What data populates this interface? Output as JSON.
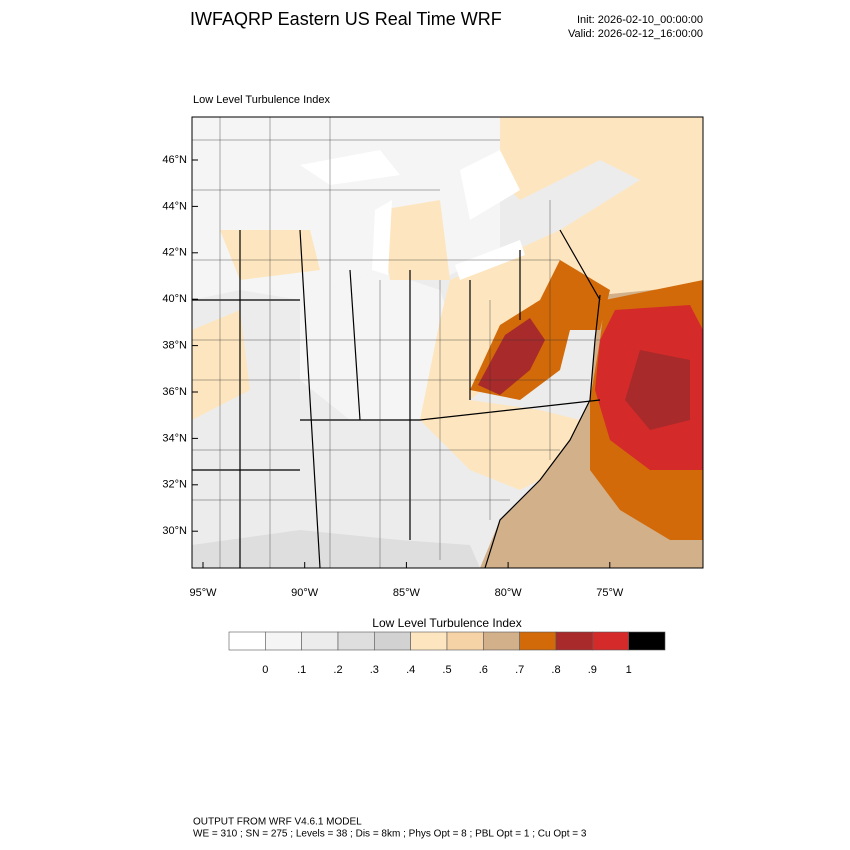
{
  "header": {
    "title": "IWFAQRP Eastern US Real Time WRF",
    "init": "Init: 2026-02-10_00:00:00",
    "valid": "Valid: 2026-02-12_16:00:00"
  },
  "map": {
    "label": "Low Level Turbulence Index",
    "lat_ticks": [
      "46°N",
      "44°N",
      "42°N",
      "40°N",
      "38°N",
      "36°N",
      "34°N",
      "32°N",
      "30°N"
    ],
    "lon_ticks": [
      "95°W",
      "90°W",
      "85°W",
      "80°W",
      "75°W"
    ]
  },
  "colorbar": {
    "title": "Low Level Turbulence Index",
    "labels": [
      "0",
      ".1",
      ".2",
      ".3",
      ".4",
      ".5",
      ".6",
      ".7",
      ".8",
      ".9",
      "1"
    ],
    "colors": [
      "#ffffff",
      "#f5f5f5",
      "#ececec",
      "#dedede",
      "#d2d2d2",
      "#fde6bf",
      "#f5d3a6",
      "#d2b08a",
      "#d26a0a",
      "#a92a2a",
      "#d42a2a",
      "#000000"
    ]
  },
  "footer": {
    "line1": "OUTPUT FROM WRF V4.6.1 MODEL",
    "line2": "WE = 310 ; SN = 275 ; Levels = 38 ; Dis = 8km ; Phys Opt = 8 ; PBL Opt = 1 ; Cu Opt = 3"
  }
}
